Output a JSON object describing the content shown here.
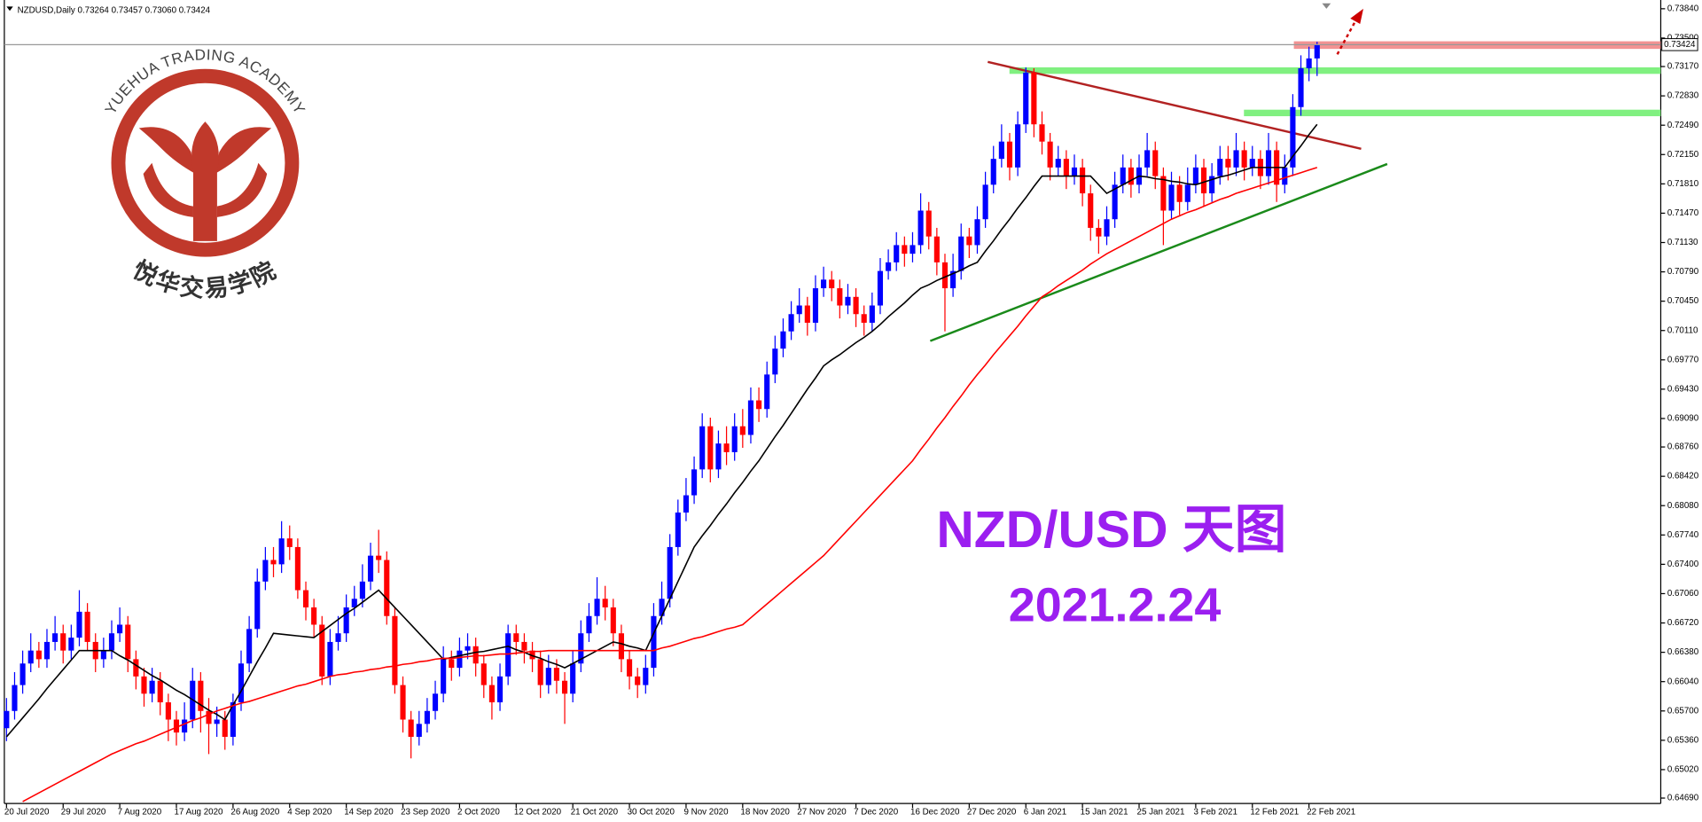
{
  "header": {
    "symbol_line": "NZDUSD,Daily  0.73264 0.73457 0.73060 0.73424"
  },
  "logo": {
    "name_en": "YUEHUA TRADING ACADEMY",
    "name_cn": "悦华交易学院"
  },
  "chart_data": {
    "type": "candlestick",
    "annotations": [
      "NZD/USD 天图",
      "2021.2.24"
    ],
    "up_color": "#0000ff",
    "down_color": "#ff0000",
    "grid": false,
    "ylim": [
      0.64627,
      0.73941
    ],
    "yticks": [
      {
        "value": 0.7384,
        "label": "0.73840"
      },
      {
        "value": 0.735,
        "label": "0.73500"
      },
      {
        "value": 0.7317,
        "label": "0.73170"
      },
      {
        "value": 0.7283,
        "label": "0.72830"
      },
      {
        "value": 0.7249,
        "label": "0.72490"
      },
      {
        "value": 0.7215,
        "label": "0.72150"
      },
      {
        "value": 0.7181,
        "label": "0.71810"
      },
      {
        "value": 0.7147,
        "label": "0.71470"
      },
      {
        "value": 0.7113,
        "label": "0.71130"
      },
      {
        "value": 0.7079,
        "label": "0.70790"
      },
      {
        "value": 0.7045,
        "label": "0.70450"
      },
      {
        "value": 0.7011,
        "label": "0.70110"
      },
      {
        "value": 0.6977,
        "label": "0.69770"
      },
      {
        "value": 0.6943,
        "label": "0.69430"
      },
      {
        "value": 0.6909,
        "label": "0.69090"
      },
      {
        "value": 0.6876,
        "label": "0.68760"
      },
      {
        "value": 0.6842,
        "label": "0.68420"
      },
      {
        "value": 0.6808,
        "label": "0.68080"
      },
      {
        "value": 0.6774,
        "label": "0.67740"
      },
      {
        "value": 0.674,
        "label": "0.67400"
      },
      {
        "value": 0.6706,
        "label": "0.67060"
      },
      {
        "value": 0.6672,
        "label": "0.66720"
      },
      {
        "value": 0.6638,
        "label": "0.66380"
      },
      {
        "value": 0.6604,
        "label": "0.66040"
      },
      {
        "value": 0.657,
        "label": "0.65700"
      },
      {
        "value": 0.6536,
        "label": "0.65360"
      },
      {
        "value": 0.6502,
        "label": "0.65020"
      },
      {
        "value": 0.6469,
        "label": "0.64690"
      }
    ],
    "categories": [
      "20 Jul 2020",
      null,
      null,
      null,
      null,
      null,
      null,
      "29 Jul 2020",
      null,
      null,
      null,
      null,
      null,
      null,
      "7 Aug 2020",
      null,
      null,
      null,
      null,
      null,
      null,
      "17 Aug 2020",
      null,
      null,
      null,
      null,
      null,
      null,
      "26 Aug 2020",
      null,
      null,
      null,
      null,
      null,
      null,
      "4 Sep 2020",
      null,
      null,
      null,
      null,
      null,
      null,
      "14 Sep 2020",
      null,
      null,
      null,
      null,
      null,
      null,
      "23 Sep 2020",
      null,
      null,
      null,
      null,
      null,
      null,
      "2 Oct 2020",
      null,
      null,
      null,
      null,
      null,
      null,
      "12 Oct 2020",
      null,
      null,
      null,
      null,
      null,
      null,
      "21 Oct 2020",
      null,
      null,
      null,
      null,
      null,
      null,
      "30 Oct 2020",
      null,
      null,
      null,
      null,
      null,
      null,
      "9 Nov 2020",
      null,
      null,
      null,
      null,
      null,
      null,
      "18 Nov 2020",
      null,
      null,
      null,
      null,
      null,
      null,
      "27 Nov 2020",
      null,
      null,
      null,
      null,
      null,
      null,
      "7 Dec 2020",
      null,
      null,
      null,
      null,
      null,
      null,
      "16 Dec 2020",
      null,
      null,
      null,
      null,
      null,
      null,
      "27 Dec 2020",
      null,
      null,
      null,
      null,
      null,
      null,
      "6 Jan 2021",
      null,
      null,
      null,
      null,
      null,
      null,
      "15 Jan 2021",
      null,
      null,
      null,
      null,
      null,
      null,
      "25 Jan 2021",
      null,
      null,
      null,
      null,
      null,
      null,
      "3 Feb 2021",
      null,
      null,
      null,
      null,
      null,
      null,
      "12 Feb 2021",
      null,
      null,
      null,
      null,
      null,
      null,
      "22 Feb 2021",
      null
    ],
    "open": [
      0.655,
      0.657,
      0.66,
      0.6625,
      0.664,
      0.663,
      0.665,
      0.666,
      0.664,
      0.6655,
      0.6685,
      0.665,
      0.663,
      0.664,
      0.666,
      0.667,
      0.663,
      0.661,
      0.659,
      0.6605,
      0.658,
      0.656,
      0.6545,
      0.656,
      0.6605,
      0.657,
      0.6555,
      0.656,
      0.654,
      0.658,
      0.6625,
      0.6665,
      0.672,
      0.6745,
      0.674,
      0.677,
      0.676,
      0.671,
      0.669,
      0.667,
      0.661,
      0.665,
      0.666,
      0.669,
      0.67,
      0.672,
      0.675,
      0.6745,
      0.668,
      0.66,
      0.656,
      0.654,
      0.6555,
      0.657,
      0.659,
      0.663,
      0.662,
      0.664,
      0.6645,
      0.6625,
      0.66,
      0.658,
      0.661,
      0.666,
      0.665,
      0.664,
      0.663,
      0.66,
      0.662,
      0.6605,
      0.659,
      0.6625,
      0.666,
      0.668,
      0.67,
      0.669,
      0.666,
      0.663,
      0.661,
      0.66,
      0.662,
      0.668,
      0.67,
      0.676,
      0.68,
      0.682,
      0.685,
      0.69,
      0.685,
      0.688,
      0.687,
      0.69,
      0.689,
      0.693,
      0.692,
      0.696,
      0.699,
      0.701,
      0.703,
      0.704,
      0.702,
      0.706,
      0.707,
      0.706,
      0.704,
      0.705,
      0.703,
      0.702,
      0.704,
      0.708,
      0.709,
      0.711,
      0.71,
      0.711,
      0.715,
      0.712,
      0.709,
      0.706,
      0.708,
      0.712,
      0.711,
      0.714,
      0.718,
      0.721,
      0.723,
      0.72,
      0.725,
      0.731,
      0.725,
      0.723,
      0.72,
      0.721,
      0.719,
      0.72,
      0.717,
      0.713,
      0.712,
      0.714,
      0.718,
      0.72,
      0.718,
      0.72,
      0.722,
      0.719,
      0.715,
      0.718,
      0.716,
      0.718,
      0.72,
      0.717,
      0.719,
      0.721,
      0.72,
      0.722,
      0.72,
      0.721,
      0.719,
      0.722,
      0.718,
      0.72,
      0.727,
      0.7315,
      0.73264
    ],
    "high": [
      0.6585,
      0.6615,
      0.664,
      0.666,
      0.665,
      0.6665,
      0.668,
      0.667,
      0.667,
      0.671,
      0.6695,
      0.666,
      0.6655,
      0.6675,
      0.669,
      0.668,
      0.664,
      0.662,
      0.662,
      0.6615,
      0.659,
      0.657,
      0.658,
      0.662,
      0.6615,
      0.6585,
      0.6575,
      0.657,
      0.659,
      0.664,
      0.668,
      0.6735,
      0.676,
      0.676,
      0.679,
      0.6785,
      0.677,
      0.672,
      0.67,
      0.668,
      0.6665,
      0.668,
      0.6705,
      0.6715,
      0.674,
      0.6765,
      0.678,
      0.6755,
      0.669,
      0.661,
      0.657,
      0.657,
      0.6585,
      0.6605,
      0.6645,
      0.664,
      0.6655,
      0.666,
      0.6655,
      0.6635,
      0.661,
      0.6625,
      0.667,
      0.667,
      0.666,
      0.665,
      0.664,
      0.6635,
      0.663,
      0.6615,
      0.664,
      0.6675,
      0.6695,
      0.6725,
      0.6715,
      0.67,
      0.667,
      0.664,
      0.662,
      0.6635,
      0.6695,
      0.672,
      0.6775,
      0.6815,
      0.684,
      0.6865,
      0.6915,
      0.691,
      0.6895,
      0.69,
      0.6915,
      0.692,
      0.6945,
      0.6945,
      0.6975,
      0.7005,
      0.7025,
      0.7045,
      0.706,
      0.705,
      0.7075,
      0.7085,
      0.708,
      0.707,
      0.7065,
      0.706,
      0.704,
      0.7055,
      0.7095,
      0.7105,
      0.7125,
      0.712,
      0.7125,
      0.717,
      0.716,
      0.713,
      0.71,
      0.71,
      0.7135,
      0.713,
      0.7155,
      0.7195,
      0.7225,
      0.725,
      0.724,
      0.7265,
      0.7316,
      0.7315,
      0.7265,
      0.724,
      0.7225,
      0.722,
      0.7215,
      0.721,
      0.718,
      0.714,
      0.7155,
      0.7195,
      0.7215,
      0.721,
      0.7215,
      0.724,
      0.723,
      0.72,
      0.7195,
      0.719,
      0.72,
      0.7215,
      0.721,
      0.7205,
      0.7225,
      0.7225,
      0.724,
      0.723,
      0.7225,
      0.722,
      0.724,
      0.723,
      0.7215,
      0.7285,
      0.733,
      0.734,
      0.73457
    ],
    "low": [
      0.6535,
      0.656,
      0.659,
      0.6615,
      0.662,
      0.662,
      0.664,
      0.6625,
      0.663,
      0.6645,
      0.664,
      0.6615,
      0.662,
      0.663,
      0.665,
      0.6615,
      0.6595,
      0.6575,
      0.658,
      0.6565,
      0.6535,
      0.653,
      0.6535,
      0.655,
      0.6545,
      0.652,
      0.654,
      0.6525,
      0.653,
      0.657,
      0.6615,
      0.6655,
      0.671,
      0.6725,
      0.673,
      0.6745,
      0.67,
      0.6675,
      0.6655,
      0.66,
      0.66,
      0.664,
      0.665,
      0.668,
      0.669,
      0.671,
      0.673,
      0.667,
      0.659,
      0.6545,
      0.6515,
      0.653,
      0.6545,
      0.656,
      0.658,
      0.6605,
      0.661,
      0.663,
      0.661,
      0.6585,
      0.656,
      0.657,
      0.66,
      0.6635,
      0.6625,
      0.6615,
      0.6585,
      0.659,
      0.659,
      0.6555,
      0.658,
      0.6615,
      0.665,
      0.667,
      0.6675,
      0.6645,
      0.6615,
      0.6595,
      0.6585,
      0.659,
      0.661,
      0.667,
      0.669,
      0.675,
      0.679,
      0.681,
      0.684,
      0.6835,
      0.684,
      0.6855,
      0.686,
      0.6875,
      0.688,
      0.6905,
      0.691,
      0.695,
      0.698,
      0.7,
      0.702,
      0.7005,
      0.701,
      0.705,
      0.7045,
      0.7025,
      0.703,
      0.7015,
      0.7005,
      0.701,
      0.703,
      0.707,
      0.708,
      0.7085,
      0.709,
      0.71,
      0.7105,
      0.7075,
      0.701,
      0.705,
      0.707,
      0.7095,
      0.71,
      0.713,
      0.717,
      0.72,
      0.7185,
      0.719,
      0.724,
      0.7235,
      0.7215,
      0.7185,
      0.719,
      0.7175,
      0.718,
      0.7155,
      0.7115,
      0.71,
      0.711,
      0.713,
      0.717,
      0.7165,
      0.717,
      0.719,
      0.7175,
      0.711,
      0.714,
      0.7145,
      0.715,
      0.717,
      0.7155,
      0.716,
      0.718,
      0.7185,
      0.719,
      0.7185,
      0.719,
      0.7175,
      0.718,
      0.716,
      0.717,
      0.719,
      0.726,
      0.73,
      0.7306
    ],
    "close": [
      0.657,
      0.66,
      0.6625,
      0.664,
      0.663,
      0.665,
      0.666,
      0.664,
      0.6655,
      0.6685,
      0.665,
      0.663,
      0.664,
      0.666,
      0.667,
      0.663,
      0.661,
      0.659,
      0.6605,
      0.658,
      0.656,
      0.6545,
      0.656,
      0.6605,
      0.657,
      0.6555,
      0.656,
      0.654,
      0.658,
      0.6625,
      0.6665,
      0.672,
      0.6745,
      0.674,
      0.677,
      0.676,
      0.671,
      0.669,
      0.667,
      0.661,
      0.665,
      0.666,
      0.669,
      0.67,
      0.672,
      0.675,
      0.6745,
      0.668,
      0.66,
      0.656,
      0.654,
      0.6555,
      0.657,
      0.659,
      0.663,
      0.662,
      0.664,
      0.6645,
      0.6625,
      0.66,
      0.658,
      0.661,
      0.666,
      0.665,
      0.664,
      0.663,
      0.66,
      0.662,
      0.6605,
      0.659,
      0.6625,
      0.666,
      0.668,
      0.67,
      0.669,
      0.666,
      0.663,
      0.661,
      0.66,
      0.662,
      0.668,
      0.67,
      0.676,
      0.68,
      0.682,
      0.685,
      0.69,
      0.685,
      0.688,
      0.687,
      0.69,
      0.689,
      0.693,
      0.692,
      0.696,
      0.699,
      0.701,
      0.703,
      0.704,
      0.702,
      0.706,
      0.707,
      0.706,
      0.704,
      0.705,
      0.703,
      0.702,
      0.704,
      0.708,
      0.709,
      0.711,
      0.71,
      0.711,
      0.715,
      0.712,
      0.709,
      0.706,
      0.708,
      0.712,
      0.711,
      0.714,
      0.718,
      0.721,
      0.723,
      0.72,
      0.725,
      0.731,
      0.725,
      0.723,
      0.72,
      0.721,
      0.719,
      0.72,
      0.717,
      0.713,
      0.712,
      0.714,
      0.718,
      0.72,
      0.718,
      0.72,
      0.722,
      0.719,
      0.715,
      0.718,
      0.716,
      0.718,
      0.72,
      0.717,
      0.719,
      0.721,
      0.72,
      0.722,
      0.72,
      0.721,
      0.719,
      0.722,
      0.718,
      0.72,
      0.727,
      0.7315,
      0.73264,
      0.73424
    ],
    "series": [
      {
        "color": "#000000",
        "values": [
          0.654,
          0.6551,
          0.6562,
          0.6573,
          0.6584,
          0.6596,
          0.6607,
          0.6618,
          0.6629,
          0.664,
          0.664,
          0.664,
          0.664,
          0.664,
          0.6634,
          0.6629,
          0.6623,
          0.6617,
          0.6611,
          0.6606,
          0.66,
          0.6594,
          0.6589,
          0.6583,
          0.6577,
          0.6571,
          0.6566,
          0.656,
          0.6577,
          0.6593,
          0.661,
          0.6627,
          0.6643,
          0.666,
          0.6659,
          0.6658,
          0.6657,
          0.6656,
          0.6655,
          0.6662,
          0.6669,
          0.6676,
          0.6683,
          0.6689,
          0.6696,
          0.6703,
          0.671,
          0.67,
          0.669,
          0.668,
          0.667,
          0.666,
          0.665,
          0.664,
          0.663,
          0.6632,
          0.6634,
          0.6636,
          0.6638,
          0.6639,
          0.6641,
          0.6643,
          0.6645,
          0.6641,
          0.6638,
          0.6634,
          0.6631,
          0.6627,
          0.6624,
          0.662,
          0.6625,
          0.663,
          0.6635,
          0.664,
          0.6645,
          0.665,
          0.6648,
          0.6645,
          0.6643,
          0.664,
          0.666,
          0.668,
          0.67,
          0.672,
          0.674,
          0.676,
          0.6773,
          0.6785,
          0.6798,
          0.681,
          0.6823,
          0.6835,
          0.6848,
          0.686,
          0.6874,
          0.6888,
          0.6901,
          0.6915,
          0.6929,
          0.6943,
          0.6956,
          0.697,
          0.6977,
          0.6983,
          0.699,
          0.6997,
          0.7003,
          0.701,
          0.7018,
          0.7027,
          0.7035,
          0.7043,
          0.7052,
          0.706,
          0.7064,
          0.7069,
          0.7073,
          0.7077,
          0.7081,
          0.7086,
          0.709,
          0.7103,
          0.7115,
          0.7128,
          0.714,
          0.7153,
          0.7165,
          0.7178,
          0.719,
          0.719,
          0.719,
          0.719,
          0.719,
          0.719,
          0.719,
          0.718,
          0.717,
          0.7175,
          0.718,
          0.7185,
          0.719,
          0.7189,
          0.7187,
          0.7186,
          0.7184,
          0.7183,
          0.7181,
          0.718,
          0.7183,
          0.7186,
          0.7189,
          0.7191,
          0.7194,
          0.7197,
          0.72,
          0.72,
          0.72,
          0.72,
          0.72,
          0.7213,
          0.7225,
          0.7238,
          0.725
        ]
      },
      {
        "color": "#ff0000",
        "values": [
          null,
          null,
          0.6465,
          0.647,
          0.6475,
          0.648,
          0.6485,
          0.649,
          0.6495,
          0.65,
          0.6505,
          0.651,
          0.6515,
          0.652,
          0.6524,
          0.6528,
          0.6532,
          0.6535,
          0.6539,
          0.6543,
          0.6547,
          0.6551,
          0.6555,
          0.6559,
          0.6562,
          0.6566,
          0.657,
          0.6573,
          0.6576,
          0.6579,
          0.6581,
          0.6584,
          0.6587,
          0.659,
          0.6593,
          0.6596,
          0.6599,
          0.6601,
          0.6604,
          0.6607,
          0.661,
          0.6612,
          0.6613,
          0.6615,
          0.6616,
          0.6618,
          0.6619,
          0.6621,
          0.6622,
          0.6624,
          0.6625,
          0.6627,
          0.6628,
          0.663,
          0.6631,
          0.6631,
          0.6632,
          0.6633,
          0.6634,
          0.6634,
          0.6635,
          0.6636,
          0.6636,
          0.6637,
          0.6638,
          0.6639,
          0.6639,
          0.664,
          0.664,
          0.664,
          0.664,
          0.664,
          0.664,
          0.664,
          0.664,
          0.664,
          0.664,
          0.664,
          0.664,
          0.664,
          0.664,
          0.6643,
          0.6645,
          0.6648,
          0.6651,
          0.6654,
          0.6656,
          0.6659,
          0.6662,
          0.6665,
          0.6667,
          0.667,
          0.6678,
          0.6686,
          0.6694,
          0.6702,
          0.671,
          0.6718,
          0.6726,
          0.6734,
          0.6742,
          0.675,
          0.676,
          0.677,
          0.678,
          0.679,
          0.68,
          0.681,
          0.682,
          0.683,
          0.684,
          0.685,
          0.686,
          0.6873,
          0.6885,
          0.6898,
          0.691,
          0.6923,
          0.6935,
          0.6948,
          0.696,
          0.6971,
          0.6983,
          0.6994,
          0.7005,
          0.7016,
          0.7028,
          0.7039,
          0.705,
          0.7056,
          0.7063,
          0.7069,
          0.7075,
          0.7081,
          0.7088,
          0.7094,
          0.71,
          0.7105,
          0.711,
          0.7115,
          0.712,
          0.7125,
          0.713,
          0.7135,
          0.714,
          0.7144,
          0.7148,
          0.7151,
          0.7155,
          0.7159,
          0.7163,
          0.7166,
          0.717,
          0.7173,
          0.7176,
          0.7179,
          0.7182,
          0.7185,
          0.7188,
          0.7191,
          0.7194,
          0.7197,
          0.72
        ]
      }
    ]
  }
}
